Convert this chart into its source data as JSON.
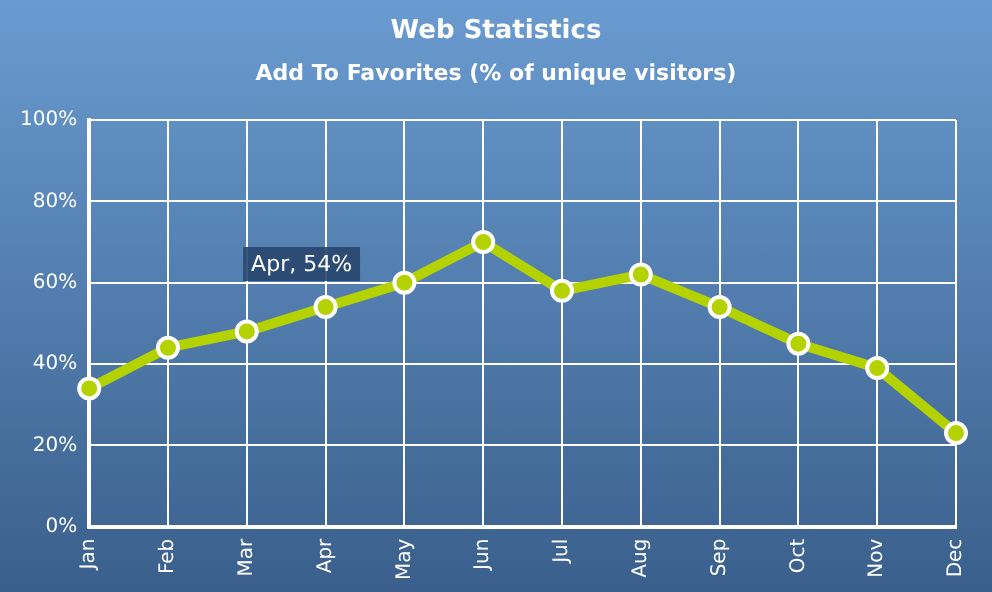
{
  "chart_data": {
    "type": "line",
    "title": "Web Statistics",
    "subtitle": "Add To Favorites (% of unique visitors)",
    "categories": [
      "Jan",
      "Feb",
      "Mar",
      "Apr",
      "May",
      "Jun",
      "Jul",
      "Aug",
      "Sep",
      "Oct",
      "Nov",
      "Dec"
    ],
    "series": [
      {
        "color": "#b4d200",
        "values": [
          34,
          44,
          48,
          54,
          60,
          70,
          58,
          62,
          54,
          45,
          39,
          23
        ]
      }
    ],
    "ylim": [
      0,
      100
    ],
    "yticks": [
      {
        "value": 0,
        "label": "0%"
      },
      {
        "value": 20,
        "label": "20%"
      },
      {
        "value": 40,
        "label": "40%"
      },
      {
        "value": 60,
        "label": "60%"
      },
      {
        "value": 80,
        "label": "80%"
      },
      {
        "value": 100,
        "label": "100%"
      }
    ],
    "annotations": [
      {
        "text": "Apr, 54%",
        "x": "Apr",
        "y": 54
      }
    ],
    "grid": true,
    "legend": false,
    "marker": "circle",
    "line_style": "solid"
  }
}
